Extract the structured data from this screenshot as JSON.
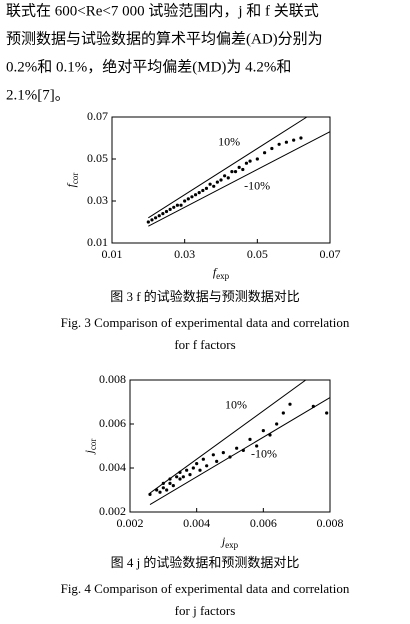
{
  "text_lines": [
    "联式在 600<Re<7 000 试验范围内，j 和 f 关联式",
    "预测数据与试验数据的算术平均偏差(AD)分别为",
    "0.2%和 0.1%，绝对平均偏差(MD)为 4.2%和",
    "2.1%[7]。"
  ],
  "chart_data": [
    {
      "type": "scatter",
      "xlabel": "f",
      "xlabel_sub": "exp",
      "ylabel": "f",
      "ylabel_sub": "cor",
      "xlim": [
        0.01,
        0.07
      ],
      "xticks": [
        0.01,
        0.03,
        0.05,
        0.07
      ],
      "ylim": [
        0.01,
        0.07
      ],
      "yticks": [
        0.01,
        0.03,
        0.05,
        0.07
      ],
      "color": "#000000",
      "reference_lines": [
        {
          "value": 10,
          "label": "10%"
        },
        {
          "value": -10,
          "label": "-10%"
        }
      ],
      "x": [
        0.02,
        0.021,
        0.022,
        0.023,
        0.024,
        0.025,
        0.026,
        0.027,
        0.028,
        0.029,
        0.03,
        0.031,
        0.032,
        0.033,
        0.034,
        0.035,
        0.036,
        0.037,
        0.038,
        0.039,
        0.04,
        0.041,
        0.042,
        0.043,
        0.044,
        0.045,
        0.046,
        0.047,
        0.048,
        0.05,
        0.052,
        0.054,
        0.056,
        0.058,
        0.06,
        0.062
      ],
      "values": [
        0.02,
        0.021,
        0.022,
        0.023,
        0.024,
        0.025,
        0.026,
        0.027,
        0.028,
        0.028,
        0.03,
        0.031,
        0.032,
        0.033,
        0.034,
        0.035,
        0.036,
        0.038,
        0.037,
        0.039,
        0.04,
        0.042,
        0.041,
        0.044,
        0.044,
        0.046,
        0.045,
        0.048,
        0.049,
        0.05,
        0.053,
        0.055,
        0.057,
        0.058,
        0.059,
        0.06
      ]
    },
    {
      "type": "scatter",
      "xlabel": "j",
      "xlabel_sub": "exp",
      "ylabel": "j",
      "ylabel_sub": "cor",
      "xlim": [
        0.002,
        0.008
      ],
      "xticks": [
        0.002,
        0.004,
        0.006,
        0.008
      ],
      "ylim": [
        0.002,
        0.008
      ],
      "yticks": [
        0.002,
        0.004,
        0.006,
        0.008
      ],
      "color": "#000000",
      "reference_lines": [
        {
          "value": 10,
          "label": "10%"
        },
        {
          "value": -10,
          "label": "-10%"
        }
      ],
      "x": [
        0.0026,
        0.0028,
        0.0029,
        0.003,
        0.003,
        0.0031,
        0.0032,
        0.0032,
        0.0033,
        0.0034,
        0.0035,
        0.0035,
        0.0036,
        0.0037,
        0.0038,
        0.0039,
        0.004,
        0.0041,
        0.0042,
        0.0043,
        0.0045,
        0.0046,
        0.0048,
        0.005,
        0.0052,
        0.0054,
        0.0056,
        0.0058,
        0.006,
        0.0062,
        0.0064,
        0.0066,
        0.0068,
        0.0075,
        0.0079
      ],
      "values": [
        0.0028,
        0.003,
        0.0029,
        0.0031,
        0.0033,
        0.003,
        0.0033,
        0.0035,
        0.0032,
        0.0036,
        0.0035,
        0.0038,
        0.0036,
        0.0039,
        0.0037,
        0.004,
        0.0042,
        0.0039,
        0.0044,
        0.0041,
        0.0046,
        0.0043,
        0.0047,
        0.0045,
        0.0049,
        0.0048,
        0.0053,
        0.005,
        0.0057,
        0.0055,
        0.006,
        0.0065,
        0.0069,
        0.0068,
        0.0065
      ]
    }
  ],
  "captions": [
    {
      "zh": "图 3   f 的试验数据与预测数据对比",
      "en": [
        "Fig. 3   Comparison of experimental data and correlation",
        "for f factors"
      ]
    },
    {
      "zh": "图 4   j 的试验数据和预测数据对比",
      "en": [
        "Fig. 4   Comparison of experimental data and correlation",
        "for j factors"
      ]
    }
  ]
}
